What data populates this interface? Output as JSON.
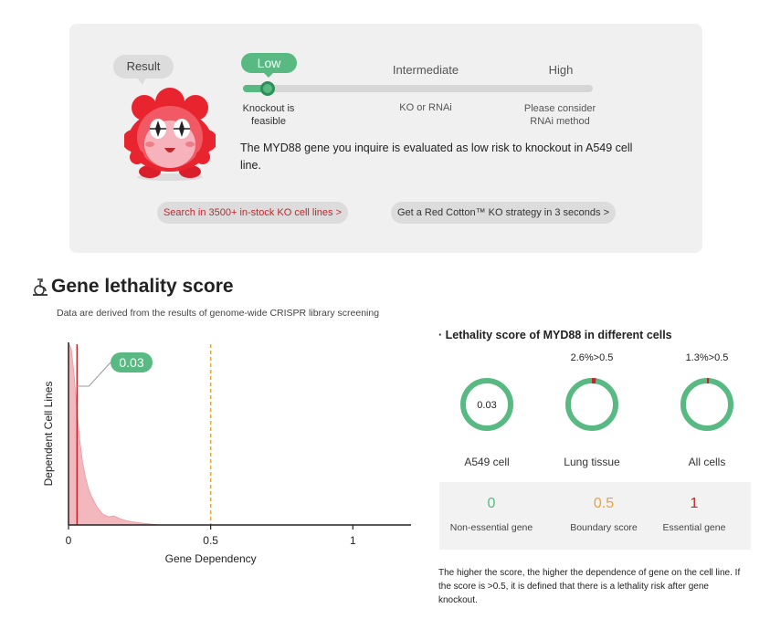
{
  "result_card": {
    "bubble_label": "Result",
    "levels": {
      "low": "Low",
      "intermediate": "Intermediate",
      "high": "High"
    },
    "level_subtitles": {
      "low": "Knockout is\nfeasible",
      "intermediate": "KO or RNAi",
      "high": "Please consider\nRNAi method"
    },
    "risk_position_percent": 7,
    "result_text": "The MYD88 gene you inquire is evaluated as low risk to knockout in A549 cell line.",
    "buttons": {
      "search": "Search in 3500+ in-stock KO cell lines >",
      "strategy": "Get a Red Cotton™ KO strategy in 3 seconds >"
    }
  },
  "section": {
    "title": "Gene lethality score",
    "subtitle": "Data are derived from the results of genome-wide CRISPR library screening"
  },
  "chart_data": {
    "type": "area",
    "xlabel": "Gene Dependency",
    "ylabel": "Dependent Cell Lines",
    "xlim": [
      0,
      1.15
    ],
    "xticks": [
      "0",
      "0.5",
      "1"
    ],
    "threshold": 0.5,
    "marker_value": 0.03,
    "marker_label": "0.03",
    "density_x": [
      0.0,
      0.01,
      0.02,
      0.03,
      0.04,
      0.05,
      0.06,
      0.07,
      0.08,
      0.1,
      0.12,
      0.14,
      0.16,
      0.18,
      0.2,
      0.22,
      0.25,
      0.28,
      0.32
    ],
    "density_y": [
      1.0,
      0.96,
      0.82,
      0.62,
      0.46,
      0.34,
      0.26,
      0.2,
      0.16,
      0.1,
      0.06,
      0.045,
      0.05,
      0.035,
      0.025,
      0.018,
      0.012,
      0.007,
      0.0
    ]
  },
  "right_panel": {
    "title": "· Lethality score of MYD88 in different cells",
    "cells": [
      {
        "label": "A549 cell",
        "pct": "",
        "center": "0.03",
        "fraction": 0
      },
      {
        "label": "Lung tissue",
        "pct": "2.6%>0.5",
        "center": "",
        "fraction": 0.026
      },
      {
        "label": "All cells",
        "pct": "1.3%>0.5",
        "center": "",
        "fraction": 0.013
      }
    ],
    "legend": [
      {
        "value": "0",
        "label": "Non-essential gene",
        "color": "#58b983"
      },
      {
        "value": "0.5",
        "label": "Boundary score",
        "color": "#e8a23c"
      },
      {
        "value": "1",
        "label": "Essential gene",
        "color": "#c0272d"
      }
    ],
    "note": "The higher the score, the higher the dependence of gene on the cell line. If the score is >0.5, it is defined that there is a lethality risk after gene knockout."
  },
  "colors": {
    "accent_green": "#58b983",
    "alert_red": "#c0272d",
    "boundary_orange": "#e8a23c",
    "density_fill": "#f2b8bd"
  },
  "icons": {
    "section": "flask-icon",
    "mascot": "red-cotton-mascot"
  }
}
